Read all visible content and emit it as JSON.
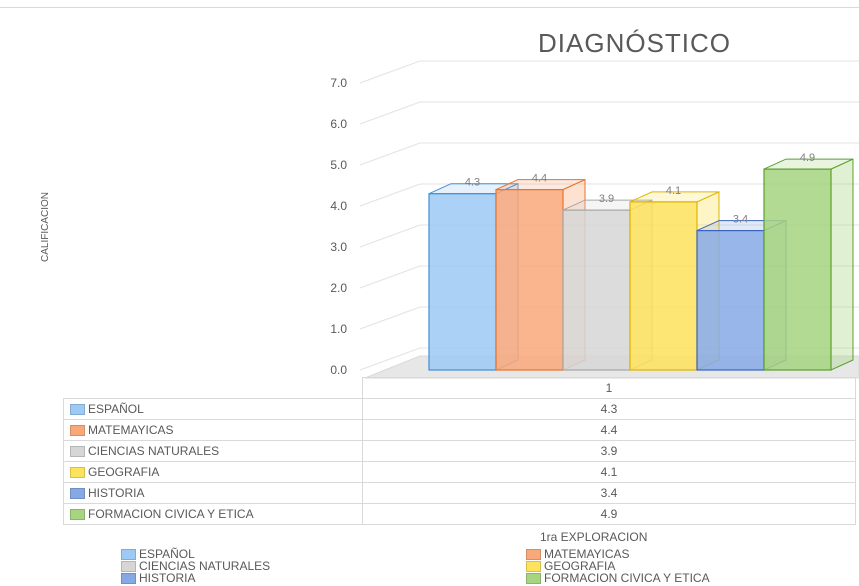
{
  "chart_data": {
    "type": "bar",
    "title": "DIAGNÓSTICO",
    "ylabel": "CALIFICACION",
    "xlabel": "1ra EXPLORACION",
    "categories": [
      "1"
    ],
    "ylim": [
      0,
      7
    ],
    "y_ticks": [
      "0.0",
      "1.0",
      "2.0",
      "3.0",
      "4.0",
      "5.0",
      "6.0",
      "7.0"
    ],
    "grid": true,
    "legend_position": "bottom",
    "data_table": true,
    "series": [
      {
        "name": "ESPAÑOL",
        "values": [
          4.3
        ],
        "label": "4.3",
        "color": "#9dc9f5"
      },
      {
        "name": "MATEMAYICAS",
        "values": [
          4.4
        ],
        "label": "4.4",
        "color": "#f9a87a"
      },
      {
        "name": "CIENCIAS NATURALES",
        "values": [
          3.9
        ],
        "label": "3.9",
        "color": "#d6d6d6"
      },
      {
        "name": "GEOGRAFIA",
        "values": [
          4.1
        ],
        "label": "4.1",
        "color": "#fde25c"
      },
      {
        "name": "HISTORIA",
        "values": [
          3.4
        ],
        "label": "3.4",
        "color": "#86a9e6"
      },
      {
        "name": "FORMACION CIVICA Y ETICA",
        "values": [
          4.9
        ],
        "label": "4.9",
        "color": "#a6d47f"
      }
    ],
    "edge_colors": [
      "#3f8fd8",
      "#e8732b",
      "#a6a6a6",
      "#e0b400",
      "#3a64c0",
      "#5aa02c"
    ]
  }
}
